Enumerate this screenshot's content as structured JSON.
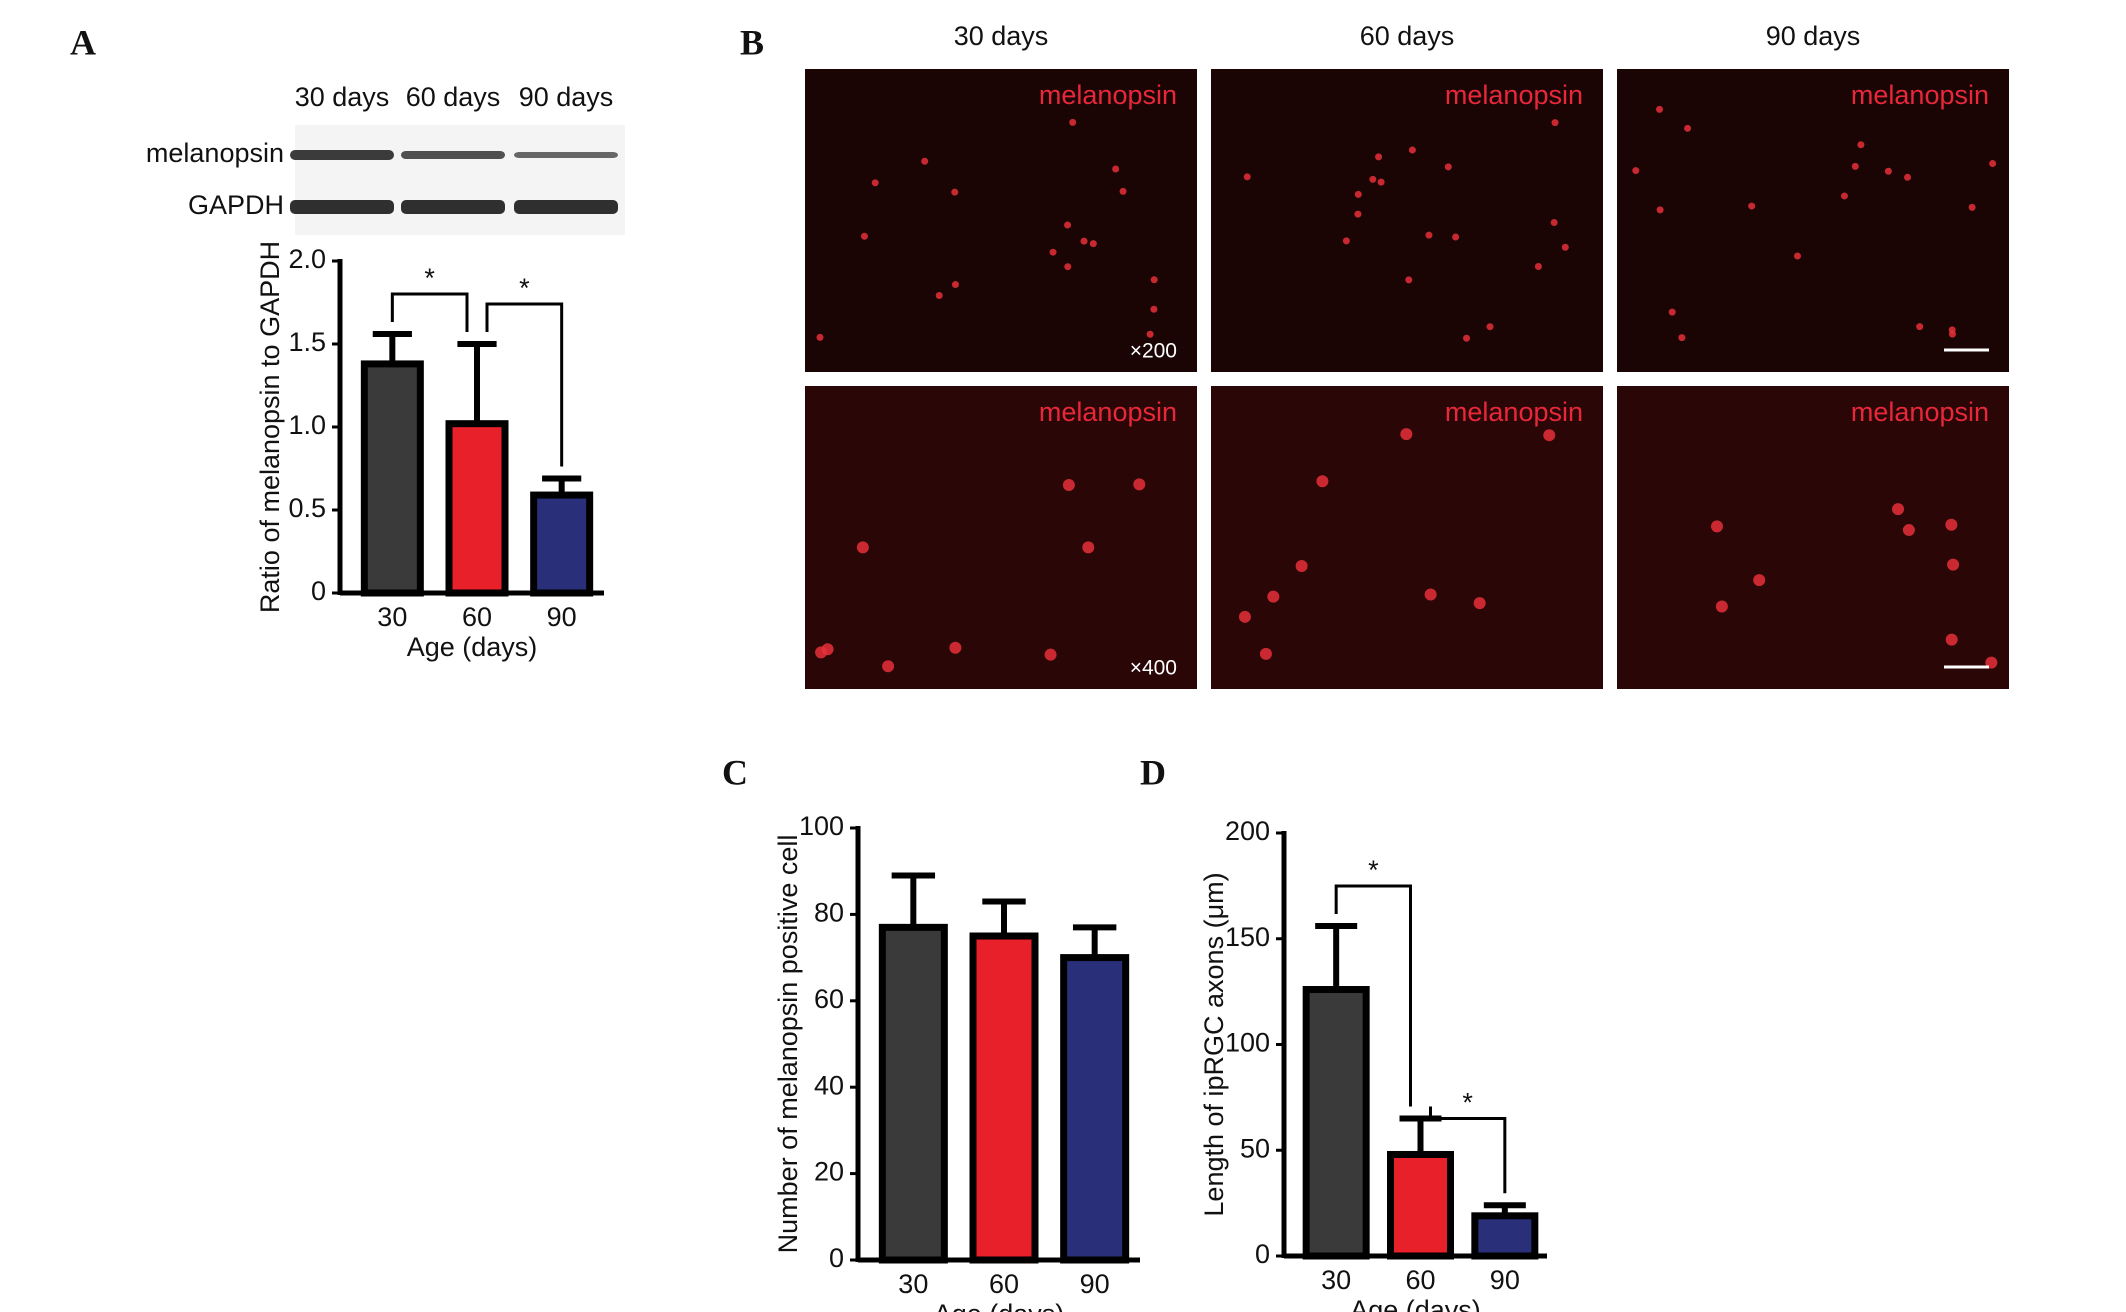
{
  "panel_labels": [
    "A",
    "B",
    "C",
    "D"
  ],
  "blot": {
    "columns": [
      "30 days",
      "60 days",
      "90 days"
    ],
    "rows": [
      "melanopsin",
      "GAPDH"
    ]
  },
  "micrographs": {
    "columns": [
      "30 days",
      "60 days",
      "90 days"
    ],
    "stain": "melanopsin",
    "magnifications": [
      "×200",
      "×400"
    ]
  },
  "chart_data": [
    {
      "type": "bar",
      "ylabel": "Ratio of  melanopsin to GAPDH",
      "xlabel": "Age (days)",
      "categories": [
        "30",
        "60",
        "90"
      ],
      "values": [
        1.38,
        1.02,
        0.59
      ],
      "errors": [
        0.18,
        0.48,
        0.1
      ],
      "colors": [
        "#3a3a3a",
        "#e8202a",
        "#2a2f7a"
      ],
      "ylim": [
        0,
        2
      ],
      "yticks": [
        0,
        0.5,
        {
          "value": 1,
          "label": "1.0"
        },
        1.5,
        {
          "value": 2,
          "label": "2.0"
        }
      ],
      "annotations": [
        "*",
        "*"
      ]
    },
    {
      "type": "bar",
      "ylabel": "Number of melanopsin positive cell",
      "xlabel": "Age (days)",
      "categories": [
        "30",
        "60",
        "90"
      ],
      "values": [
        77,
        75,
        70
      ],
      "errors": [
        12,
        8,
        7
      ],
      "colors": [
        "#3a3a3a",
        "#e8202a",
        "#2a2f7a"
      ],
      "ylim": [
        0,
        100
      ],
      "yticks": [
        0,
        20,
        40,
        60,
        80,
        100
      ]
    },
    {
      "type": "bar",
      "ylabel": "Length of ipRGC axons (μm)",
      "xlabel": "Age (days)",
      "categories": [
        "30",
        "60",
        "90"
      ],
      "values": [
        126,
        48,
        19
      ],
      "errors": [
        30,
        17,
        5
      ],
      "colors": [
        "#3a3a3a",
        "#e8202a",
        "#2a2f7a"
      ],
      "ylim": [
        0,
        200
      ],
      "yticks": [
        0,
        50,
        100,
        150,
        200
      ],
      "annotations": [
        "*",
        "*"
      ]
    }
  ]
}
